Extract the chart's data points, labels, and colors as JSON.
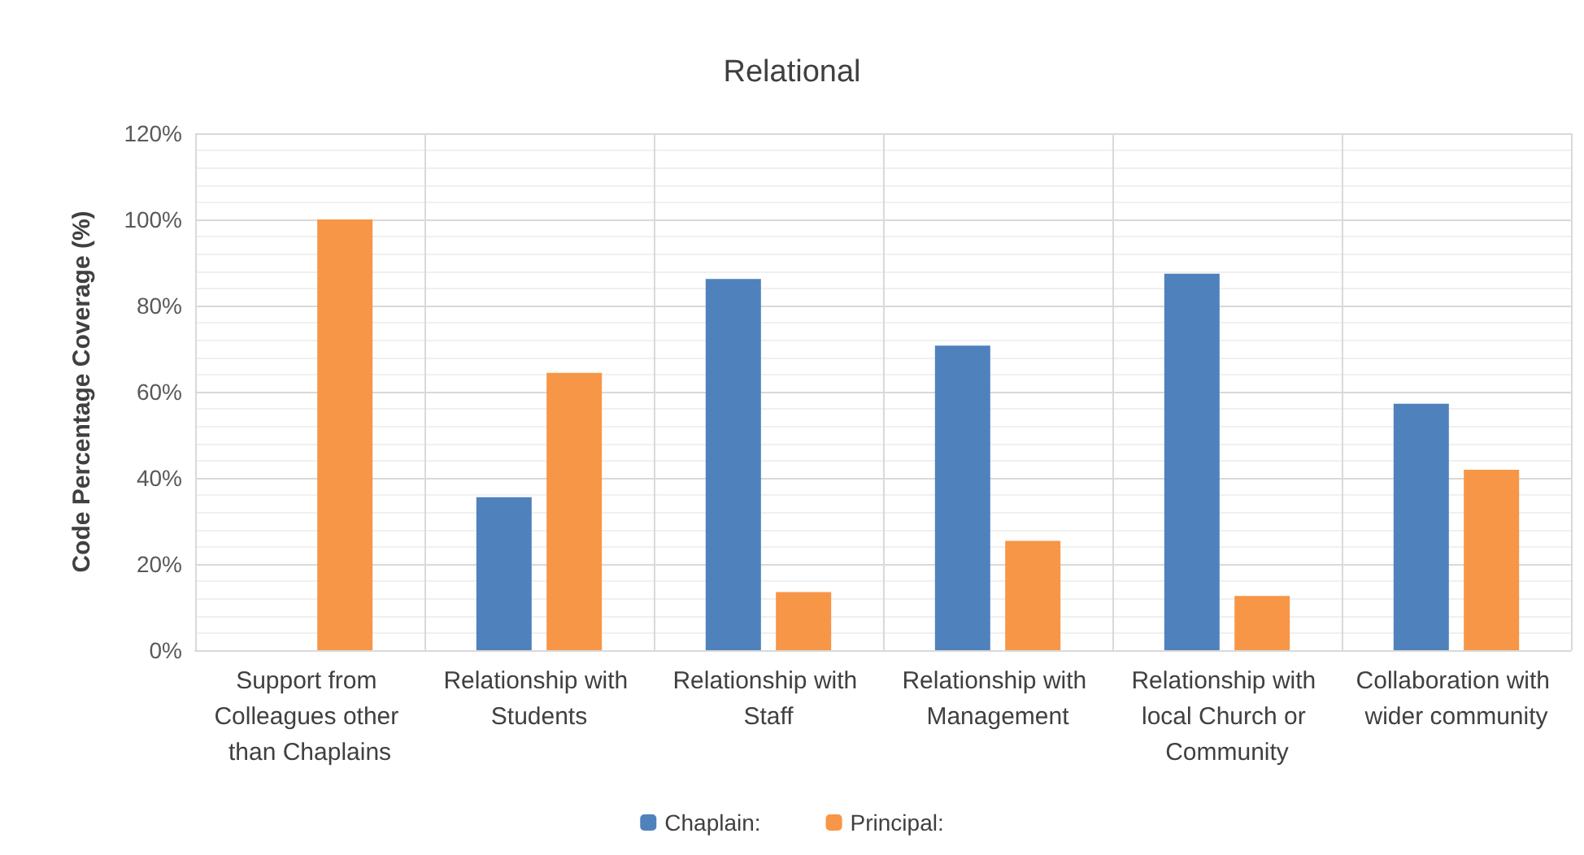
{
  "chart_data": {
    "type": "bar",
    "title": "Relational",
    "ylabel": "Code Percentage Coverage (%)",
    "categories": [
      "Support from Colleagues other than Chaplains",
      "Relationship with Students",
      "Relationship with Staff",
      "Relationship with Management",
      "Relationship with local Church or Community",
      "Collaboration with wider community"
    ],
    "series": [
      {
        "name": "Chaplain:",
        "color": "#4f81bd",
        "values": [
          0,
          35.5,
          86.2,
          70.7,
          87.4,
          57.2
        ]
      },
      {
        "name": "Principal:",
        "color": "#f79646",
        "values": [
          100,
          64.4,
          13.5,
          25.4,
          12.6,
          41.9
        ]
      }
    ],
    "ylim": [
      0,
      120
    ],
    "yticks": [
      {
        "value": 0,
        "label": "0%"
      },
      {
        "value": 20,
        "label": "20%"
      },
      {
        "value": 40,
        "label": "40%"
      },
      {
        "value": 60,
        "label": "60%"
      },
      {
        "value": 80,
        "label": "80%"
      },
      {
        "value": 100,
        "label": "100%"
      },
      {
        "value": 120,
        "label": "120%"
      }
    ],
    "grid": true,
    "legend": "bottom"
  }
}
